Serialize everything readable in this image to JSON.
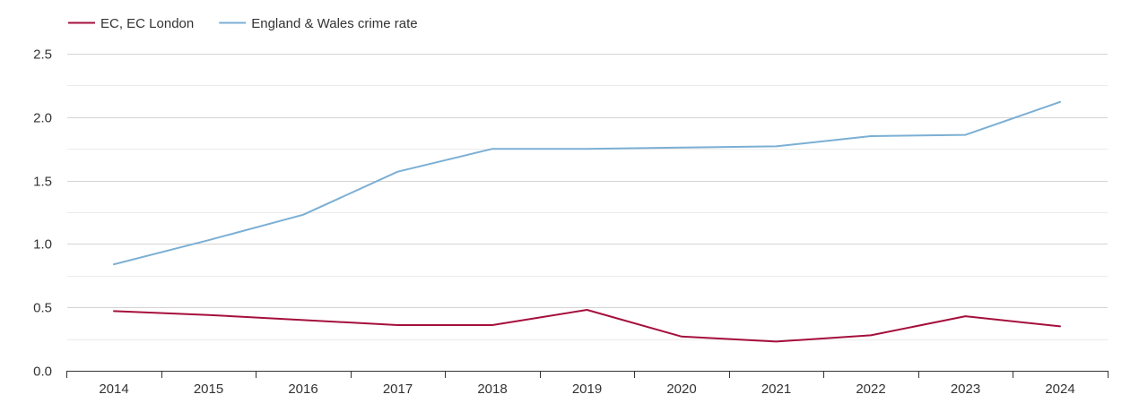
{
  "chart_data": {
    "type": "line",
    "title": "",
    "xlabel": "",
    "ylabel": "",
    "categories": [
      "2014",
      "2015",
      "2016",
      "2017",
      "2018",
      "2019",
      "2020",
      "2021",
      "2022",
      "2023",
      "2024"
    ],
    "ylim": [
      0,
      2.5
    ],
    "yticks": [
      "0.0",
      "0.5",
      "1.0",
      "1.5",
      "2.0",
      "2.5"
    ],
    "grid": true,
    "legend_position": "top-left",
    "series": [
      {
        "name": "EC, EC London",
        "color": "#a50f3c",
        "values": [
          0.47,
          0.44,
          0.4,
          0.36,
          0.36,
          0.48,
          0.27,
          0.23,
          0.28,
          0.43,
          0.35
        ]
      },
      {
        "name": "England & Wales crime rate",
        "color": "#7bafd4",
        "values": [
          0.84,
          1.03,
          1.23,
          1.57,
          1.75,
          1.75,
          1.76,
          1.77,
          1.85,
          1.86,
          2.12
        ]
      }
    ]
  }
}
